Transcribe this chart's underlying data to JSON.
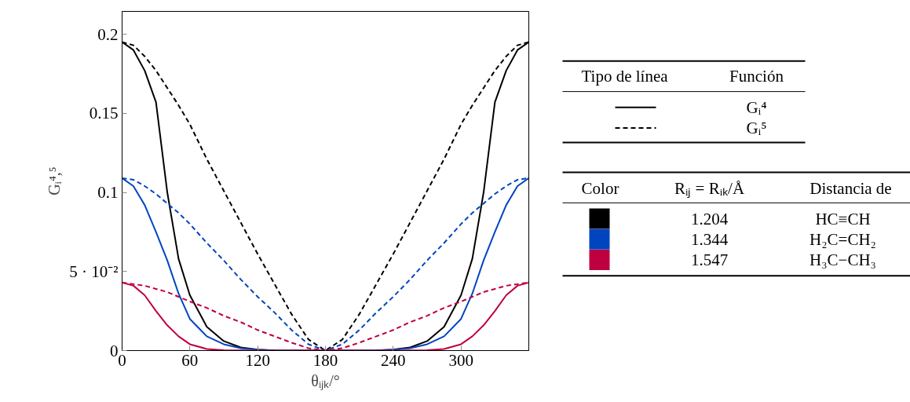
{
  "chart_data": {
    "type": "line",
    "xlabel": "θᵢⱼₖ/°",
    "ylabel": "Gᵢ⁴,⁵",
    "x": [
      0,
      10,
      20,
      30,
      40,
      50,
      60,
      75,
      90,
      105,
      120,
      135,
      150,
      165,
      180,
      195,
      210,
      225,
      240,
      255,
      270,
      285,
      300,
      310,
      320,
      330,
      340,
      350,
      360
    ],
    "xlim": [
      0,
      360
    ],
    "xticks": [
      0,
      60,
      120,
      180,
      240,
      300
    ],
    "ylim": [
      0,
      0.2144
    ],
    "yticks": [
      0,
      {
        "value": 0.05,
        "label": "5 · 10⁻²"
      },
      0.1,
      0.15,
      0.2
    ],
    "grid": false,
    "marker": "none",
    "series": [
      {
        "color": "#000000",
        "line_style": "solid",
        "values": [
          0.195,
          0.19,
          0.177,
          0.157,
          0.1,
          0.058,
          0.035,
          0.015,
          0.006,
          0.002,
          0.0006,
          0.0001,
          0,
          0,
          0,
          0,
          0,
          0.0001,
          0.0006,
          0.002,
          0.006,
          0.015,
          0.035,
          0.058,
          0.1,
          0.157,
          0.177,
          0.19,
          0.195
        ]
      },
      {
        "color": "#000000",
        "line_style": "dashed",
        "values": [
          0.195,
          0.193,
          0.186,
          0.177,
          0.166,
          0.155,
          0.143,
          0.121,
          0.101,
          0.081,
          0.061,
          0.042,
          0.023,
          0.007,
          0,
          0.007,
          0.023,
          0.042,
          0.061,
          0.081,
          0.101,
          0.121,
          0.143,
          0.155,
          0.166,
          0.177,
          0.186,
          0.193,
          0.195
        ]
      },
      {
        "color": "#0044c0",
        "line_style": "solid",
        "values": [
          0.109,
          0.104,
          0.092,
          0.075,
          0.057,
          0.036,
          0.02,
          0.009,
          0.004,
          0.0015,
          0.0005,
          0.0001,
          0,
          0,
          0,
          0,
          0,
          0.0001,
          0.0005,
          0.0015,
          0.004,
          0.009,
          0.02,
          0.036,
          0.057,
          0.075,
          0.092,
          0.104,
          0.109
        ]
      },
      {
        "color": "#0044c0",
        "line_style": "dashed",
        "values": [
          0.109,
          0.108,
          0.104,
          0.099,
          0.093,
          0.087,
          0.08,
          0.068,
          0.057,
          0.045,
          0.034,
          0.024,
          0.013,
          0.004,
          0,
          0.004,
          0.013,
          0.024,
          0.034,
          0.045,
          0.057,
          0.068,
          0.08,
          0.087,
          0.093,
          0.099,
          0.104,
          0.108,
          0.109
        ]
      },
      {
        "color": "#bf0040",
        "line_style": "solid",
        "values": [
          0.043,
          0.041,
          0.035,
          0.025,
          0.016,
          0.009,
          0.004,
          0.001,
          0.0003,
          0.0001,
          0,
          0,
          0,
          0,
          0,
          0,
          0,
          0,
          0,
          0.0001,
          0.0003,
          0.001,
          0.004,
          0.009,
          0.016,
          0.025,
          0.035,
          0.041,
          0.043
        ]
      },
      {
        "color": "#bf0040",
        "line_style": "dashed",
        "values": [
          0.043,
          0.042,
          0.041,
          0.039,
          0.037,
          0.034,
          0.031,
          0.027,
          0.022,
          0.018,
          0.013,
          0.009,
          0.005,
          0.0015,
          0,
          0.0015,
          0.005,
          0.009,
          0.013,
          0.018,
          0.022,
          0.027,
          0.031,
          0.034,
          0.037,
          0.039,
          0.041,
          0.042,
          0.043
        ]
      }
    ],
    "annotations": [
      "Tipo de línea",
      "Función",
      "Gᵢ⁴",
      "Gᵢ⁵",
      "Color",
      "Rᵢⱼ = Rᵢₖ/Å",
      "Distancia de",
      "1.204",
      "HC≡CH",
      "1.344",
      "H₂C=CH₂",
      "1.547",
      "H₃C−CH₃"
    ]
  }
}
